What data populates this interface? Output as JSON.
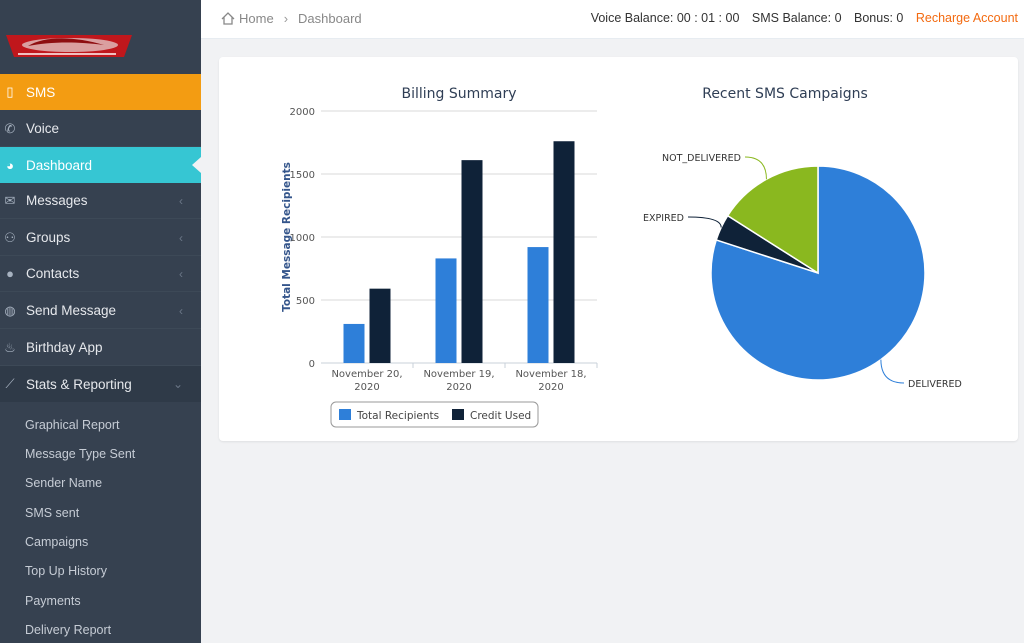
{
  "breadcrumb": {
    "home": "Home",
    "current": "Dashboard"
  },
  "balances": {
    "voice": "Voice Balance: 00 : 01 : 00",
    "sms": "SMS Balance: 0",
    "bonus": "Bonus: 0",
    "recharge": "Recharge Account"
  },
  "sidebar": {
    "items": [
      {
        "label": "SMS",
        "icon": "mobile-icon"
      },
      {
        "label": "Voice",
        "icon": "phone-icon"
      },
      {
        "label": "Dashboard",
        "icon": "dashboard-icon"
      },
      {
        "label": "Messages",
        "icon": "envelope-icon"
      },
      {
        "label": "Groups",
        "icon": "group-icon"
      },
      {
        "label": "Contacts",
        "icon": "user-icon"
      },
      {
        "label": "Send Message",
        "icon": "comment-icon"
      },
      {
        "label": "Birthday App",
        "icon": "cake-icon"
      },
      {
        "label": "Stats & Reporting",
        "icon": "chart-icon"
      }
    ],
    "submenu": [
      "Graphical Report",
      "Message Type Sent",
      "Sender Name",
      "SMS sent",
      "Campaigns",
      "Top Up History",
      "Payments",
      "Delivery Report"
    ]
  },
  "chart_data": [
    {
      "type": "bar",
      "title": "Billing Summary",
      "ylabel": "Total Message Recipients",
      "xlabel": "",
      "categories": [
        [
          "November 20,",
          "2020"
        ],
        [
          "November 19,",
          "2020"
        ],
        [
          "November 18,",
          "2020"
        ]
      ],
      "ylim": [
        0,
        2000
      ],
      "yticks": [
        0,
        500,
        1000,
        1500,
        2000
      ],
      "series": [
        {
          "name": "Total Recipients",
          "values": [
            310,
            830,
            920
          ],
          "color": "#2e7fd9"
        },
        {
          "name": "Credit Used",
          "values": [
            590,
            1610,
            1760
          ],
          "color": "#0f2238"
        }
      ],
      "legend": "bottom"
    },
    {
      "type": "pie",
      "title": "Recent SMS Campaigns",
      "slices": [
        {
          "label": "DELIVERED",
          "value": 80,
          "color": "#2e7fd9"
        },
        {
          "label": "EXPIRED",
          "value": 4,
          "color": "#0f2238"
        },
        {
          "label": "NOT_DELIVERED",
          "value": 16,
          "color": "#8ab81f"
        }
      ]
    }
  ]
}
